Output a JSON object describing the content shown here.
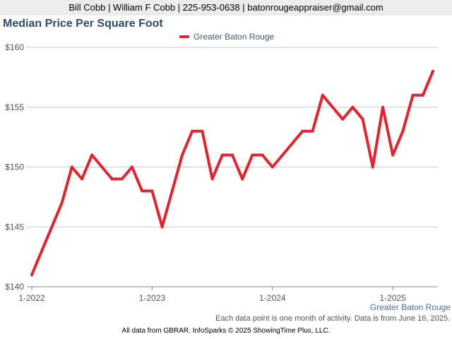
{
  "header": {
    "contact": "Bill Cobb | William F Cobb | 225-953-0638 | batonrougeappraiser@gmail.com"
  },
  "footer": {
    "note": "Each data point is one month of activity. Data is from June 16, 2025.",
    "credit": "All data from GBRAR. InfoSparks © 2025 ShowingTime Plus, LLC."
  },
  "chart_data": {
    "type": "line",
    "title": "Median Price Per Square Foot",
    "region_label": "Greater Baton Rouge",
    "legend_position": "top-center",
    "grid": true,
    "x_tick_labels": [
      "1-2022",
      "1-2023",
      "1-2024",
      "1-2025"
    ],
    "y_tick_labels": [
      "$140",
      "$145",
      "$150",
      "$155",
      "$160"
    ],
    "ylim": [
      140,
      160
    ],
    "color": "#e02430",
    "x": [
      "2022-01",
      "2022-02",
      "2022-03",
      "2022-04",
      "2022-05",
      "2022-06",
      "2022-07",
      "2022-08",
      "2022-09",
      "2022-10",
      "2022-11",
      "2022-12",
      "2023-01",
      "2023-02",
      "2023-03",
      "2023-04",
      "2023-05",
      "2023-06",
      "2023-07",
      "2023-08",
      "2023-09",
      "2023-10",
      "2023-11",
      "2023-12",
      "2024-01",
      "2024-02",
      "2024-03",
      "2024-04",
      "2024-05",
      "2024-06",
      "2024-07",
      "2024-08",
      "2024-09",
      "2024-10",
      "2024-11",
      "2024-12",
      "2025-01",
      "2025-02",
      "2025-03",
      "2025-04",
      "2025-05"
    ],
    "series": [
      {
        "name": "Greater Baton Rouge",
        "values": [
          141,
          143,
          145,
          147,
          150,
          149,
          151,
          150,
          149,
          149,
          150,
          148,
          148,
          145,
          148,
          151,
          153,
          153,
          149,
          151,
          151,
          149,
          151,
          151,
          150,
          151,
          152,
          153,
          153,
          156,
          155,
          154,
          155,
          154,
          150,
          155,
          151,
          153,
          156,
          156,
          158
        ]
      }
    ]
  }
}
